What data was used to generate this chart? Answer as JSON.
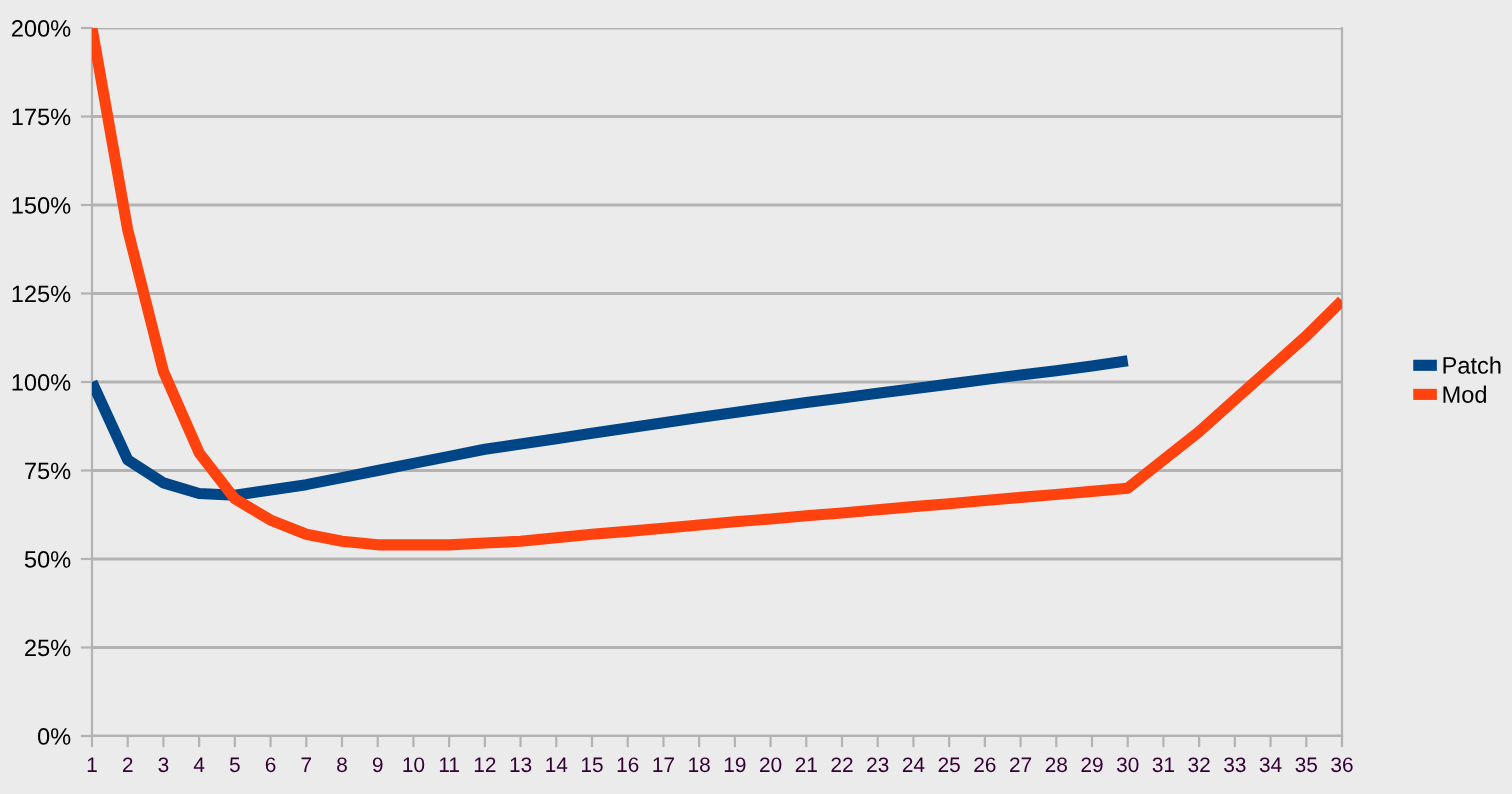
{
  "chart_data": {
    "type": "line",
    "categories": [
      "1",
      "2",
      "3",
      "4",
      "5",
      "6",
      "7",
      "8",
      "9",
      "10",
      "11",
      "12",
      "13",
      "14",
      "15",
      "16",
      "17",
      "18",
      "19",
      "20",
      "21",
      "22",
      "23",
      "24",
      "25",
      "26",
      "27",
      "28",
      "29",
      "30",
      "31",
      "32",
      "33",
      "34",
      "35",
      "36"
    ],
    "series": [
      {
        "name": "Patch",
        "color": "#004586",
        "values": [
          100,
          78,
          71.5,
          68.5,
          68,
          69.5,
          71,
          73,
          75,
          77,
          79,
          81,
          82.5,
          84,
          85.5,
          87,
          88.5,
          90,
          91.4,
          92.8,
          94.2,
          95.5,
          96.8,
          98.1,
          99.4,
          100.7,
          102,
          103.2,
          104.5,
          106,
          null,
          null,
          null,
          null,
          null,
          null
        ]
      },
      {
        "name": "Mod",
        "color": "#ff420e",
        "values": [
          200,
          143,
          103,
          80,
          67,
          61,
          57,
          55,
          54,
          54,
          54,
          54.5,
          55,
          56,
          57,
          57.8,
          58.7,
          59.6,
          60.5,
          61.3,
          62.2,
          63,
          63.9,
          64.8,
          65.6,
          66.5,
          67.4,
          68.2,
          69.1,
          70,
          78,
          86,
          95,
          104,
          113,
          123
        ]
      }
    ],
    "ylim": [
      0,
      200
    ],
    "yticks": [
      {
        "value": 0,
        "label": "0%"
      },
      {
        "value": 25,
        "label": "25%"
      },
      {
        "value": 50,
        "label": "50%"
      },
      {
        "value": 75,
        "label": "75%"
      },
      {
        "value": 100,
        "label": "100%"
      },
      {
        "value": 125,
        "label": "125%"
      },
      {
        "value": 150,
        "label": "150%"
      },
      {
        "value": 175,
        "label": "175%"
      },
      {
        "value": 200,
        "label": "200%"
      }
    ],
    "grid": "y",
    "legend": "right",
    "marker": "none",
    "line_style": "solid"
  }
}
